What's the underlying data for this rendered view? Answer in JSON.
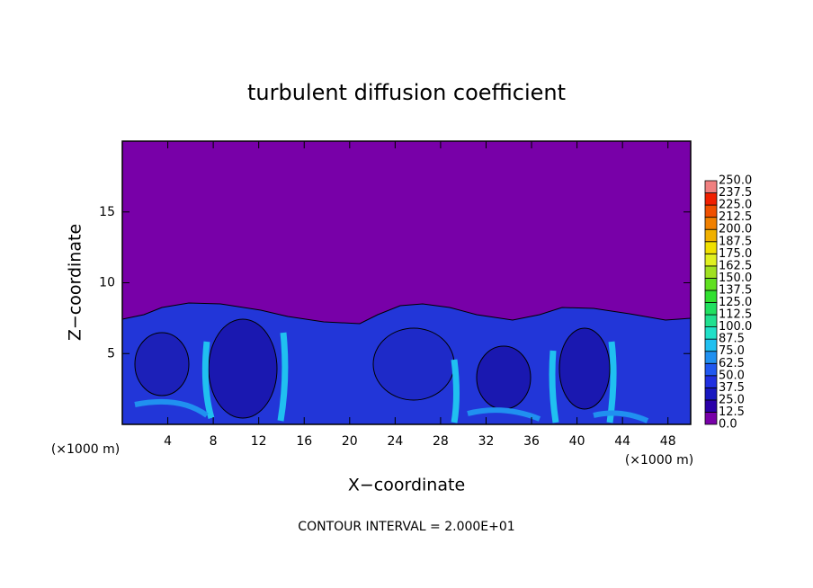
{
  "chart_data": {
    "type": "contour",
    "title": "turbulent diffusion coefficient",
    "x_label": "X−coordinate",
    "y_label": "Z−coordinate",
    "x_unit": "(×1000 m)",
    "y_unit": "(×1000 m)",
    "annotation": "CONTOUR INTERVAL = 2.000E+01",
    "xlim": [
      0,
      50
    ],
    "ylim": [
      0,
      20
    ],
    "xticks": [
      4,
      8,
      12,
      16,
      20,
      24,
      28,
      32,
      36,
      40,
      44,
      48
    ],
    "yticks": [
      5,
      10,
      15
    ],
    "colorbar": {
      "clim": [
        0,
        250
      ],
      "levels": [
        {
          "value": 0,
          "label": "0.0"
        },
        12.5,
        {
          "value": 25,
          "label": "25.0"
        },
        37.5,
        {
          "value": 50,
          "label": "50.0"
        },
        62.5,
        {
          "value": 75,
          "label": "75.0"
        },
        87.5,
        {
          "value": 100,
          "label": "100.0"
        },
        112.5,
        {
          "value": 125,
          "label": "125.0"
        },
        137.5,
        {
          "value": 150,
          "label": "150.0"
        },
        162.5,
        {
          "value": 175,
          "label": "175.0"
        },
        187.5,
        {
          "value": 200,
          "label": "200.0"
        },
        212.5,
        {
          "value": 225,
          "label": "225.0"
        },
        237.5,
        {
          "value": 250,
          "label": "250.0"
        }
      ],
      "colors": [
        "#7800a8",
        "#2a00a8",
        "#1818c0",
        "#2030e0",
        "#2058f0",
        "#2090f0",
        "#20c0f0",
        "#20e0c8",
        "#20e090",
        "#20e060",
        "#30e030",
        "#60e020",
        "#a0e020",
        "#e0f020",
        "#f0e000",
        "#f0b000",
        "#f08000",
        "#f05000",
        "#f02000",
        "#f08080"
      ]
    }
  }
}
